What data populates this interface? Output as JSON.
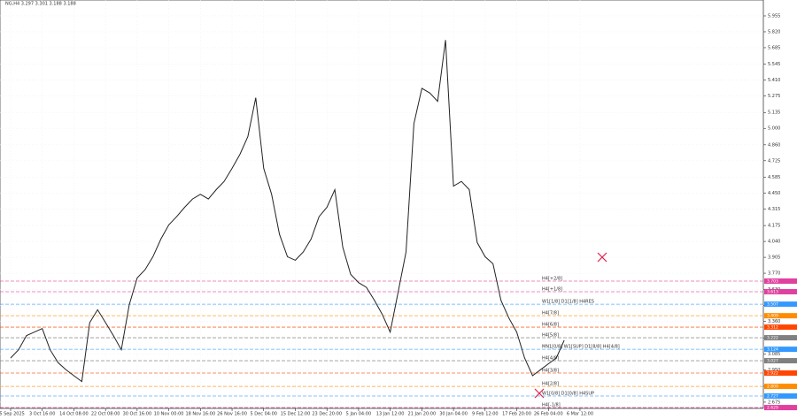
{
  "chart_data": {
    "type": "line",
    "title": "NG,H4  3.297 3.301 3.188 3.188",
    "categories": [
      "25 Sep 2025",
      null,
      null,
      null,
      "3 Oct 16:00",
      null,
      null,
      null,
      "14 Oct 08:00",
      null,
      null,
      null,
      "22 Oct 08:00",
      null,
      null,
      null,
      "30 Oct 16:00",
      null,
      null,
      null,
      "10 Nov 00:00",
      null,
      null,
      null,
      "18 Nov 16:00",
      null,
      null,
      null,
      "26 Nov 16:00",
      null,
      null,
      null,
      "5 Dec 04:00",
      null,
      null,
      null,
      "15 Dec 12:00",
      null,
      null,
      null,
      "23 Dec 20:00",
      null,
      null,
      null,
      "5 Jan 04:00",
      null,
      null,
      null,
      "13 Jan 12:00",
      null,
      null,
      null,
      "21 Jan 20:00",
      null,
      null,
      null,
      "30 Jan 04:00",
      null,
      null,
      null,
      "9 Feb 12:00",
      null,
      null,
      null,
      "17 Feb 20:00",
      null,
      null,
      null,
      "26 Feb 04:00",
      null,
      null,
      null,
      "6 Mar 12:00"
    ],
    "series": [
      {
        "name": "NG,H4",
        "color": "#222222",
        "values": [
          3.05,
          3.12,
          3.24,
          3.27,
          3.3,
          3.12,
          3.01,
          2.95,
          2.9,
          2.85,
          3.35,
          3.46,
          3.35,
          3.24,
          3.12,
          3.5,
          3.73,
          3.8,
          3.91,
          4.06,
          4.18,
          4.25,
          4.33,
          4.4,
          4.44,
          4.4,
          4.48,
          4.55,
          4.66,
          4.78,
          4.93,
          5.26,
          4.66,
          4.44,
          4.1,
          3.91,
          3.88,
          3.95,
          4.06,
          4.25,
          4.33,
          4.48,
          3.99,
          3.76,
          3.69,
          3.65,
          3.54,
          3.42,
          3.27,
          3.61,
          3.95,
          5.04,
          5.34,
          5.3,
          5.23,
          5.75,
          4.51,
          4.55,
          4.48,
          4.03,
          3.91,
          3.85,
          3.54,
          3.39,
          3.27,
          3.05,
          2.9,
          2.95,
          3.0,
          3.05,
          3.2,
          null,
          null
        ]
      }
    ],
    "ylim": [
      2.622,
      6.09
    ],
    "yticks": [
      {
        "value": 5.955,
        "label": "5.955"
      },
      {
        "value": 5.82,
        "label": "5.820"
      },
      {
        "value": 5.685,
        "label": "5.685"
      },
      {
        "value": 5.545,
        "label": "5.545"
      },
      {
        "value": 5.41,
        "label": "5.410"
      },
      {
        "value": 5.275,
        "label": "5.275"
      },
      {
        "value": 5.135,
        "label": "5.135"
      },
      {
        "value": 5.0,
        "label": "5.000"
      },
      {
        "value": 4.86,
        "label": "4.860"
      },
      {
        "value": 4.725,
        "label": "4.725"
      },
      {
        "value": 4.585,
        "label": "4.585"
      },
      {
        "value": 4.45,
        "label": "4.450"
      },
      {
        "value": 4.315,
        "label": "4.315"
      },
      {
        "value": 4.175,
        "label": "4.175"
      },
      {
        "value": 4.04,
        "label": "4.040"
      },
      {
        "value": 3.905,
        "label": "3.905"
      },
      {
        "value": 3.77,
        "label": "3.770"
      },
      {
        "value": 3.63,
        "label": "3.630"
      },
      {
        "value": 3.495,
        "label": "3.495"
      },
      {
        "value": 3.36,
        "label": "3.360"
      },
      {
        "value": 3.22,
        "label": "3.220"
      },
      {
        "value": 3.085,
        "label": "3.085"
      },
      {
        "value": 2.95,
        "label": "2.950"
      },
      {
        "value": 2.81,
        "label": "2.810"
      },
      {
        "value": 2.675,
        "label": "2.675"
      }
    ],
    "grid": true,
    "levels": [
      {
        "name": "H4[+2/8]",
        "value": 3.703,
        "color": "#e040a0"
      },
      {
        "name": "H4[+1/8]",
        "value": 3.613,
        "color": "#e040a0"
      },
      {
        "name": "W1[1/8] D1[1/8] H4RES",
        "value": 3.507,
        "color": "#3399ff"
      },
      {
        "name": "H4[7/8]",
        "value": 3.409,
        "color": "#ff8c00"
      },
      {
        "name": "H4[6/8]",
        "value": 3.312,
        "color": "#ff4500"
      },
      {
        "name": "H4[5/8]",
        "value": 3.222,
        "color": "#808080"
      },
      {
        "name": "MN1[0/8] W1[SUP] D1[8/8] H4[4/8]",
        "value": 3.124,
        "color": "#3399ff"
      },
      {
        "name": "H4[4/8]",
        "value": 3.027,
        "color": "#808080"
      },
      {
        "name": "H4[3/8]",
        "value": 2.922,
        "color": "#ff4500"
      },
      {
        "name": "H4[2/8]",
        "value": 2.809,
        "color": "#ff8c00"
      },
      {
        "name": "W1[0/8] D1[0/8] H4SUP",
        "value": 2.727,
        "color": "#3399ff"
      },
      {
        "name": "H4[-1/8]",
        "value": 2.629,
        "color": "#e040a0"
      }
    ]
  }
}
